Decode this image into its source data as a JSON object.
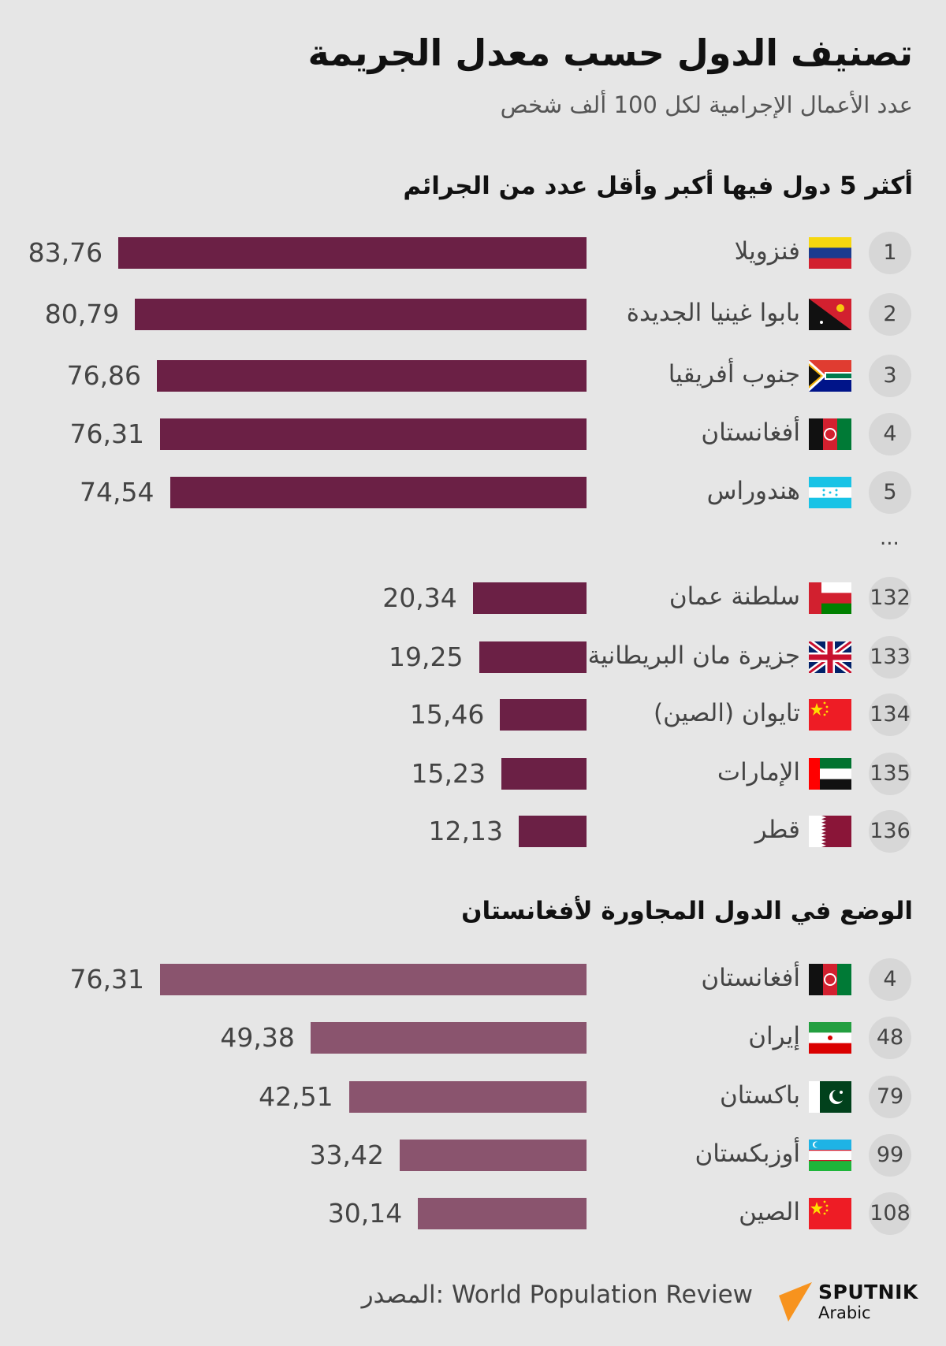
{
  "title": "تصنيف الدول حسب معدل الجريمة",
  "subtitle": "عدد الأعمال الإجرامية لكل 100 ألف شخص",
  "ellipsis": "...",
  "colors": {
    "background": "#e6e6e6",
    "bar_primary": "#6b2045",
    "bar_secondary": "#8a546e",
    "rank_circle": "#d7d7d7",
    "logo_accent": "#f7931e"
  },
  "chart_data": [
    {
      "type": "bar",
      "orientation": "horizontal",
      "title": "أكثر 5 دول فيها أكبر وأقل عدد من الجرائم",
      "rows": [
        {
          "rank": "1",
          "country": "فنزويلا",
          "flag": "venezuela-flag",
          "value": "83,76"
        },
        {
          "rank": "2",
          "country": "بابوا غينيا الجديدة",
          "flag": "papua-new-guinea-flag",
          "value": "80,79"
        },
        {
          "rank": "3",
          "country": "جنوب أفريقيا",
          "flag": "south-africa-flag",
          "value": "76,86"
        },
        {
          "rank": "4",
          "country": "أفغانستان",
          "flag": "afghanistan-flag",
          "value": "76,31"
        },
        {
          "rank": "5",
          "country": "هندوراس",
          "flag": "honduras-flag",
          "value": "74,54"
        },
        {
          "rank": "132",
          "country": "سلطنة عمان",
          "flag": "oman-flag",
          "value": "20,34"
        },
        {
          "rank": "133",
          "country": "جزيرة مان البريطانية",
          "flag": "uk-flag",
          "value": "19,25"
        },
        {
          "rank": "134",
          "country": "تايوان (الصين)",
          "flag": "china-flag",
          "value": "15,46"
        },
        {
          "rank": "135",
          "country": "الإمارات",
          "flag": "uae-flag",
          "value": "15,23"
        },
        {
          "rank": "136",
          "country": "قطر",
          "flag": "qatar-flag",
          "value": "12,13"
        }
      ]
    },
    {
      "type": "bar",
      "orientation": "horizontal",
      "title": "الوضع في الدول المجاورة لأفغانستان",
      "rows": [
        {
          "rank": "4",
          "country": "أفغانستان",
          "flag": "afghanistan-flag",
          "value": "76,31"
        },
        {
          "rank": "48",
          "country": "إيران",
          "flag": "iran-flag",
          "value": "49,38"
        },
        {
          "rank": "79",
          "country": "باكستان",
          "flag": "pakistan-flag",
          "value": "42,51"
        },
        {
          "rank": "99",
          "country": "أوزبكستان",
          "flag": "uzbekistan-flag",
          "value": "33,42"
        },
        {
          "rank": "108",
          "country": "الصين",
          "flag": "china-flag",
          "value": "30,14"
        }
      ]
    }
  ],
  "footer": {
    "source": "المصدر: World Population Review",
    "logo_name": "SPUTNIK",
    "logo_sub": "Arabic"
  }
}
